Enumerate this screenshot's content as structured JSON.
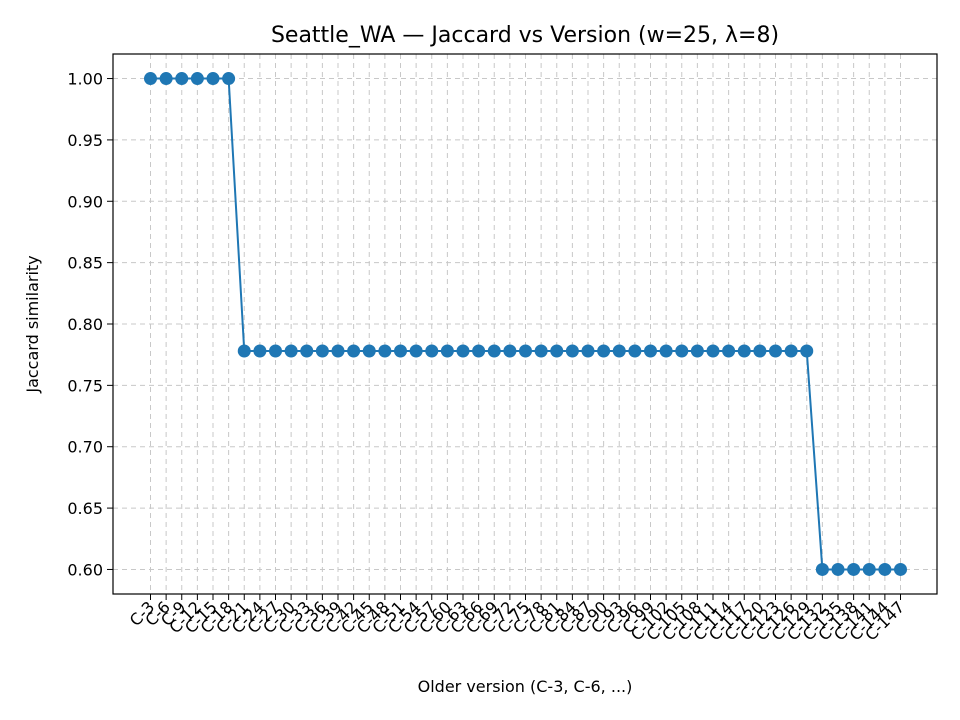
{
  "chart_data": {
    "type": "line",
    "title": "Seattle_WA — Jaccard vs Version (w=25, λ=8)",
    "xlabel": "Older version (C-3, C-6, ...)",
    "ylabel": "Jaccard similarity",
    "ylim": [
      0.58,
      1.02
    ],
    "yticks": [
      "0.60",
      "0.65",
      "0.70",
      "0.75",
      "0.80",
      "0.85",
      "0.90",
      "0.95",
      "1.00"
    ],
    "grid": true,
    "categories": [
      "C-3",
      "C-6",
      "C-9",
      "C-12",
      "C-15",
      "C-18",
      "C-21",
      "C-24",
      "C-27",
      "C-30",
      "C-33",
      "C-36",
      "C-39",
      "C-42",
      "C-45",
      "C-48",
      "C-51",
      "C-54",
      "C-57",
      "C-60",
      "C-63",
      "C-66",
      "C-69",
      "C-72",
      "C-75",
      "C-78",
      "C-81",
      "C-84",
      "C-87",
      "C-90",
      "C-93",
      "C-96",
      "C-99",
      "C-102",
      "C-105",
      "C-108",
      "C-111",
      "C-114",
      "C-117",
      "C-120",
      "C-123",
      "C-126",
      "C-129",
      "C-132",
      "C-135",
      "C-138",
      "C-141",
      "C-144",
      "C-147"
    ],
    "series": [
      {
        "color": "#1f77b4",
        "values": [
          1.0,
          1.0,
          1.0,
          1.0,
          1.0,
          1.0,
          0.778,
          0.778,
          0.778,
          0.778,
          0.778,
          0.778,
          0.778,
          0.778,
          0.778,
          0.778,
          0.778,
          0.778,
          0.778,
          0.778,
          0.778,
          0.778,
          0.778,
          0.778,
          0.778,
          0.778,
          0.778,
          0.778,
          0.778,
          0.778,
          0.778,
          0.778,
          0.778,
          0.778,
          0.778,
          0.778,
          0.778,
          0.778,
          0.778,
          0.778,
          0.778,
          0.778,
          0.778,
          0.6,
          0.6,
          0.6,
          0.6,
          0.6,
          0.6
        ]
      }
    ]
  }
}
